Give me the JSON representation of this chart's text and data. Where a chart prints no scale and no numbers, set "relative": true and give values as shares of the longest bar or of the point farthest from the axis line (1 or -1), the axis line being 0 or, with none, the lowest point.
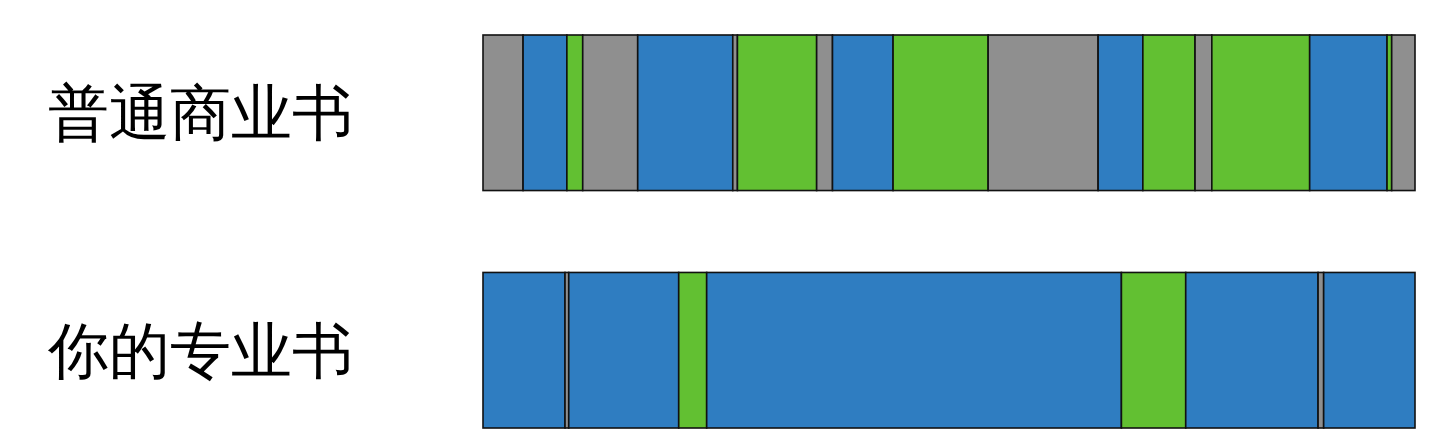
{
  "chart_data": {
    "type": "bar",
    "orientation": "horizontal",
    "stacked": true,
    "relative": true,
    "categories": [
      "普通商业书",
      "你的专业书"
    ],
    "series": [
      {
        "values": [
          0.043,
          0.088
        ],
        "colors": [
          "#8f8f8f",
          "#2f7dc1"
        ]
      },
      {
        "values": [
          0.047,
          0.004
        ],
        "colors": [
          "#2f7dc1",
          "#8f8f8f"
        ]
      },
      {
        "values": [
          0.017,
          0.118
        ],
        "colors": [
          "#62c032",
          "#2f7dc1"
        ]
      },
      {
        "values": [
          0.059,
          0.03
        ],
        "colors": [
          "#8f8f8f",
          "#62c032"
        ]
      },
      {
        "values": [
          0.102,
          0.445
        ],
        "colors": [
          "#2f7dc1",
          "#2f7dc1"
        ]
      },
      {
        "values": [
          0.005,
          0.069
        ],
        "colors": [
          "#8f8f8f",
          "#62c032"
        ]
      },
      {
        "values": [
          0.085,
          0.142
        ],
        "colors": [
          "#62c032",
          "#2f7dc1"
        ]
      },
      {
        "values": [
          0.017,
          0.006
        ],
        "colors": [
          "#8f8f8f",
          "#8f8f8f"
        ]
      },
      {
        "values": [
          0.065,
          0.098
        ],
        "colors": [
          "#2f7dc1",
          "#2f7dc1"
        ]
      },
      {
        "values": [
          0.102,
          null
        ],
        "colors": [
          "#62c032",
          null
        ]
      },
      {
        "values": [
          0.118,
          null
        ],
        "colors": [
          "#8f8f8f",
          null
        ]
      },
      {
        "values": [
          0.048,
          null
        ],
        "colors": [
          "#2f7dc1",
          null
        ]
      },
      {
        "values": [
          0.056,
          null
        ],
        "colors": [
          "#62c032",
          null
        ]
      },
      {
        "values": [
          0.018,
          null
        ],
        "colors": [
          "#8f8f8f",
          null
        ]
      },
      {
        "values": [
          0.105,
          null
        ],
        "colors": [
          "#62c032",
          null
        ]
      },
      {
        "values": [
          0.083,
          null
        ],
        "colors": [
          "#2f7dc1",
          null
        ]
      },
      {
        "values": [
          0.005,
          null
        ],
        "colors": [
          "#62c032",
          null
        ]
      },
      {
        "values": [
          0.025,
          null
        ],
        "colors": [
          "#8f8f8f",
          null
        ]
      }
    ]
  }
}
